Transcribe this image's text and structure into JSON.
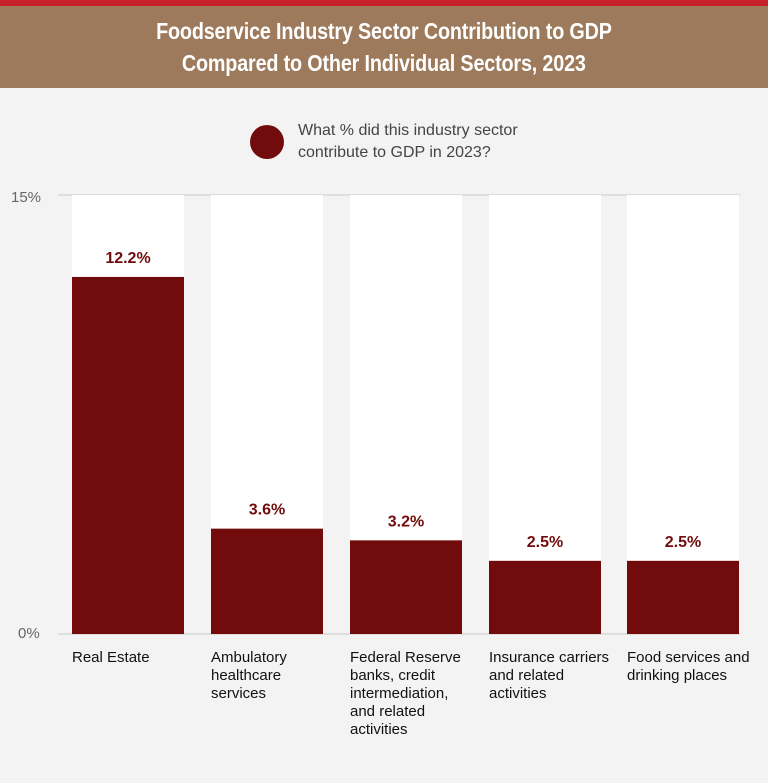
{
  "header": {
    "title_line1": "Foodservice Industry Sector Contribution to GDP",
    "title_line2": "Compared to Other Individual Sectors, 2023"
  },
  "legend": {
    "label": "What % did this industry sector contribute to GDP in 2023?"
  },
  "colors": {
    "bar": "#720c0c",
    "column_bg": "#ffffff",
    "header_bg": "#9c7a5b",
    "stripe": "#c8202a",
    "value_label": "#720c0c"
  },
  "chart_data": {
    "type": "bar",
    "title": "Foodservice Industry Sector Contribution to GDP Compared to Other Individual Sectors, 2023",
    "categories": [
      "Real Estate",
      "Ambulatory healthcare services",
      "Federal Reserve banks, credit intermediation, and related activities",
      "Insurance carriers and related activities",
      "Food services and drinking places"
    ],
    "values": [
      12.2,
      3.6,
      3.2,
      2.5,
      2.5
    ],
    "value_labels": [
      "12.2%",
      "3.6%",
      "3.2%",
      "2.5%",
      "2.5%"
    ],
    "series_name": "What % did this industry sector contribute to GDP in 2023?",
    "ylim": [
      0,
      15
    ],
    "y_tick_labels": [
      "0%",
      "15%"
    ],
    "xlabel": "",
    "ylabel": "",
    "legend_position": "top"
  }
}
